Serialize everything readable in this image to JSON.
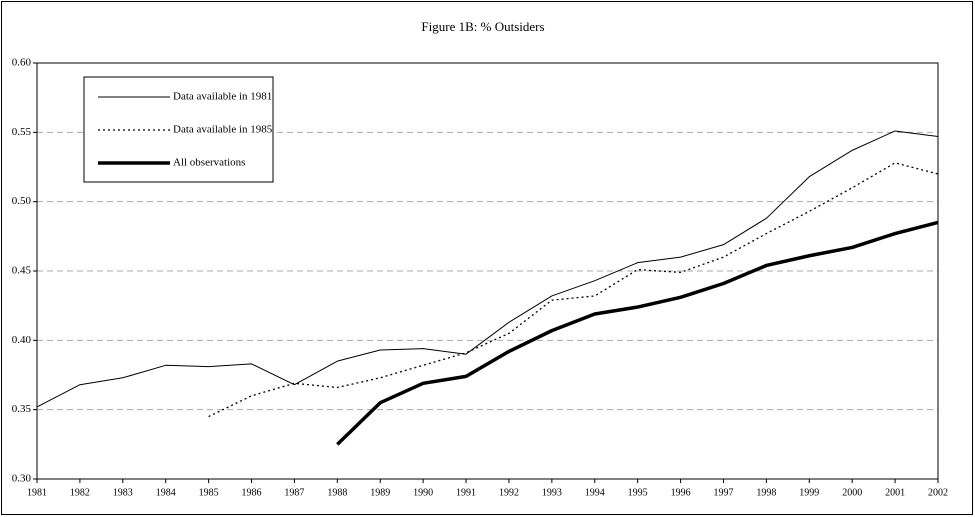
{
  "chart_data": {
    "type": "line",
    "title": "Figure 1B: % Outsiders",
    "categories": [
      "1981",
      "1982",
      "1983",
      "1984",
      "1985",
      "1986",
      "1987",
      "1988",
      "1989",
      "1990",
      "1991",
      "1992",
      "1993",
      "1994",
      "1995",
      "1996",
      "1997",
      "1998",
      "1999",
      "2000",
      "2001",
      "2002"
    ],
    "series": [
      {
        "name": "Data available in 1981",
        "color": "#000000",
        "line_width": 1,
        "dash": "none",
        "values": [
          0.352,
          0.368,
          0.373,
          0.382,
          0.381,
          0.383,
          0.368,
          0.385,
          0.393,
          0.394,
          0.39,
          0.413,
          0.432,
          0.443,
          0.456,
          0.46,
          0.469,
          0.488,
          0.518,
          0.537,
          0.551,
          0.547
        ]
      },
      {
        "name": "Data available in 1985",
        "color": "#000000",
        "line_width": 1.3,
        "dash": "2 3",
        "values": [
          null,
          null,
          null,
          null,
          0.345,
          0.36,
          0.369,
          0.366,
          0.373,
          0.382,
          0.391,
          0.405,
          0.429,
          0.432,
          0.451,
          0.449,
          0.46,
          0.477,
          0.493,
          0.51,
          0.528,
          0.52
        ]
      },
      {
        "name": "All observations",
        "color": "#000000",
        "line_width": 3.5,
        "dash": "none",
        "values": [
          null,
          null,
          null,
          null,
          null,
          null,
          null,
          0.325,
          0.355,
          0.369,
          0.374,
          0.392,
          0.407,
          0.419,
          0.424,
          0.431,
          0.441,
          0.454,
          0.461,
          0.467,
          0.477,
          0.485
        ]
      }
    ],
    "ylim": [
      0.3,
      0.6
    ],
    "yticks": [
      {
        "value": 0.3,
        "label": "0.30"
      },
      0.35,
      {
        "value": 0.4,
        "label": "0.40"
      },
      0.45,
      {
        "value": 0.5,
        "label": "0.50"
      },
      0.55,
      {
        "value": 0.6,
        "label": "0.60"
      }
    ],
    "grid": true,
    "legend": "upper left"
  }
}
